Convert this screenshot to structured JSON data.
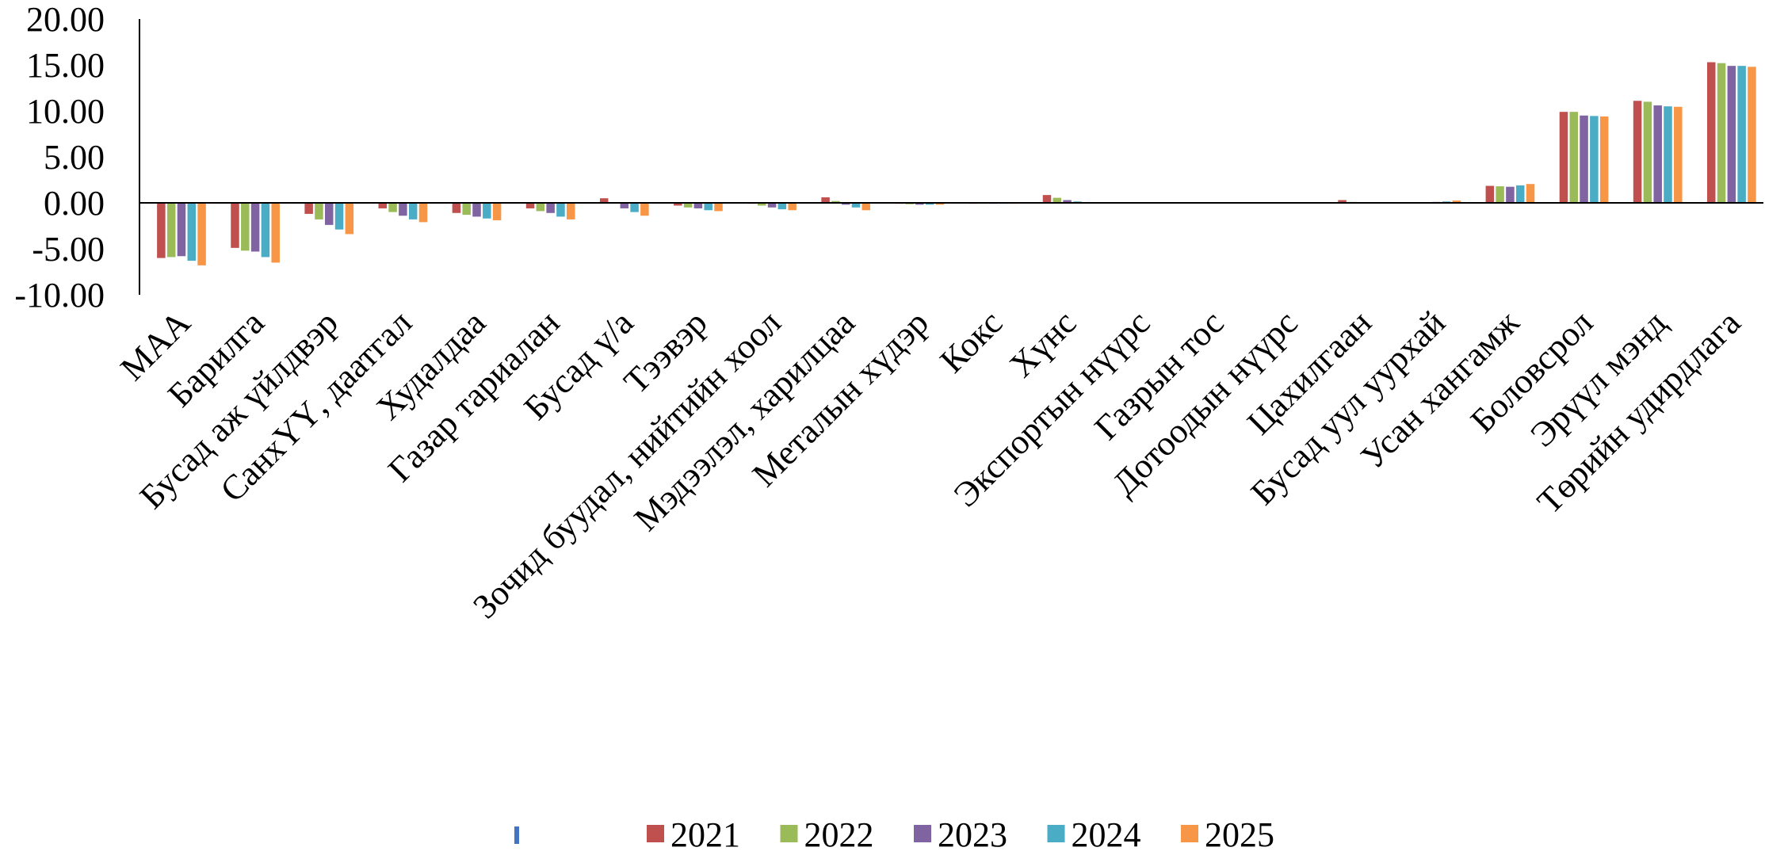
{
  "chart_data": {
    "type": "bar",
    "title": "",
    "xlabel": "",
    "ylabel": "",
    "ylim": [
      -10,
      20
    ],
    "yticks": [
      "20.00",
      "15.00",
      "10.00",
      "5.00",
      "0.00",
      "-5.00",
      "-10.00"
    ],
    "ytick_values": [
      20,
      15,
      10,
      5,
      0,
      -5,
      -10
    ],
    "grid": false,
    "legend_position": "bottom",
    "categories": [
      "МАА",
      "Барилга",
      "Бусад аж үйлдвэр",
      "СанхҮҮ, даатгал",
      "Худалдаа",
      "Газар тариалан",
      "Бусад ү/а",
      "Тээвэр",
      "Зочид буудал, нийтийн хоол",
      "Мэдээлэл, харилцаа",
      "Металын хүдэр",
      "Кокс",
      "Хүнс",
      "Экспортын нүүрс",
      "Газрын тос",
      "Дотоодын нүүрс",
      "Цахилгаан",
      "Бусад уул уурхай",
      "Усан хангамж",
      "Боловсрол",
      "Эрүүл мэнд",
      "Төрийн удирдлага"
    ],
    "series": [
      {
        "name": "",
        "color": "#4472C4",
        "values": [
          0,
          0,
          0,
          0,
          0,
          0,
          0,
          0,
          0,
          0,
          0,
          0,
          0,
          0,
          0,
          0,
          0,
          0,
          0,
          0,
          0,
          0
        ]
      },
      {
        "name": "2021",
        "color": "#C0504D",
        "values": [
          -6.0,
          -4.9,
          -1.2,
          -0.6,
          -1.1,
          -0.6,
          0.5,
          -0.3,
          -0.1,
          0.6,
          -0.1,
          -0.1,
          0.85,
          0.0,
          0.0,
          0.0,
          0.3,
          0.0,
          1.85,
          9.9,
          11.1,
          15.3
        ]
      },
      {
        "name": "2022",
        "color": "#9BBB59",
        "values": [
          -5.9,
          -5.2,
          -1.8,
          -1.0,
          -1.3,
          -0.9,
          0.0,
          -0.5,
          -0.3,
          0.2,
          -0.15,
          -0.1,
          0.55,
          0.0,
          0.0,
          0.0,
          0.1,
          0.0,
          1.8,
          9.9,
          11.0,
          15.2
        ]
      },
      {
        "name": "2023",
        "color": "#8064A2",
        "values": [
          -5.8,
          -5.3,
          -2.4,
          -1.4,
          -1.5,
          -1.1,
          -0.6,
          -0.6,
          -0.5,
          -0.2,
          -0.2,
          -0.1,
          0.3,
          0.0,
          0.0,
          0.0,
          0.0,
          0.1,
          1.75,
          9.5,
          10.6,
          14.9
        ]
      },
      {
        "name": "2024",
        "color": "#4BACC6",
        "values": [
          -6.3,
          -5.9,
          -2.9,
          -1.8,
          -1.7,
          -1.5,
          -1.0,
          -0.8,
          -0.7,
          -0.5,
          -0.2,
          -0.1,
          0.15,
          0.0,
          0.0,
          0.0,
          0.0,
          0.15,
          1.9,
          9.45,
          10.5,
          14.9
        ]
      },
      {
        "name": "2025",
        "color": "#F79646",
        "values": [
          -6.8,
          -6.5,
          -3.4,
          -2.1,
          -1.9,
          -1.8,
          -1.4,
          -0.9,
          -0.8,
          -0.8,
          -0.2,
          -0.1,
          0.05,
          0.0,
          0.0,
          0.0,
          0.0,
          0.25,
          2.05,
          9.4,
          10.45,
          14.8
        ]
      }
    ]
  }
}
